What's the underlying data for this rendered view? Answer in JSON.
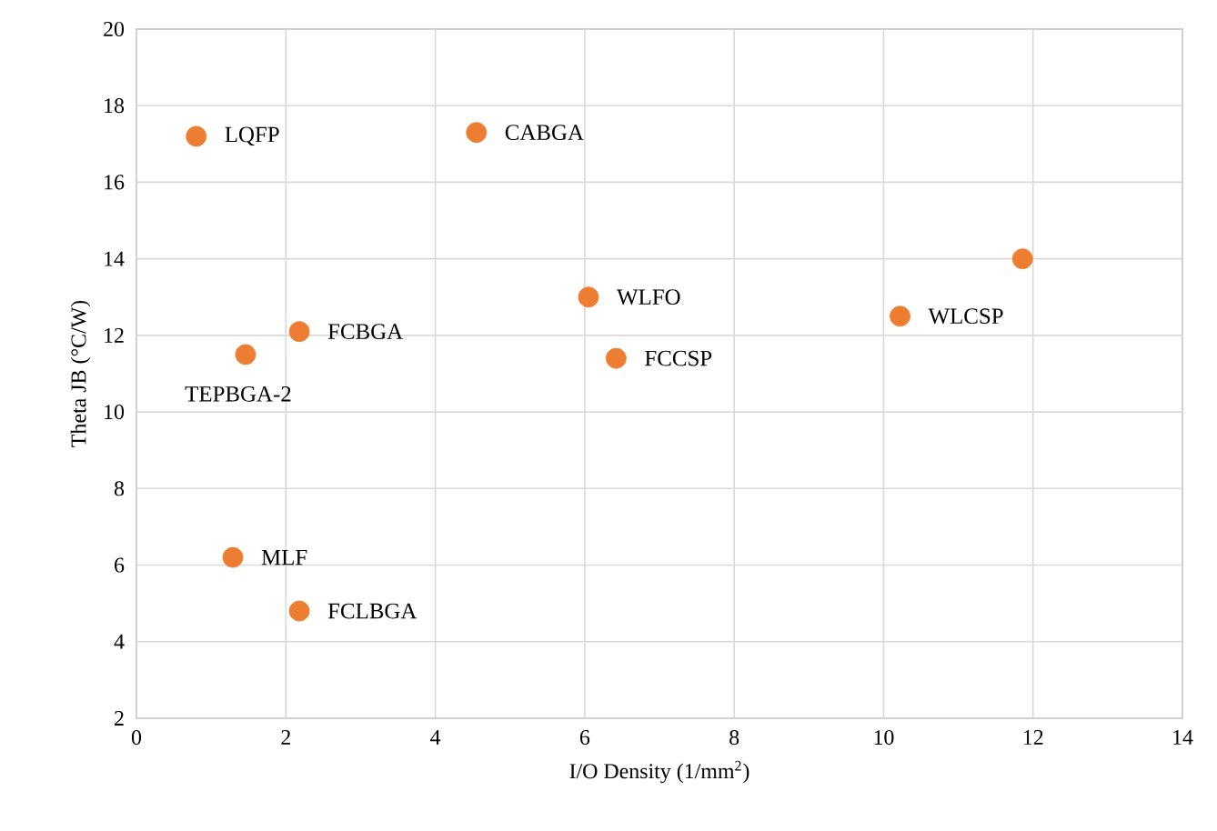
{
  "chart_data": {
    "type": "scatter",
    "xlabel": "I/O Density (1/mm$^{2}$)",
    "ylabel": "Theta JB (°C/W)",
    "series": [
      {
        "color": "#ed7d31",
        "x": [
          0.8,
          4.55,
          11.86,
          6.05,
          10.22,
          2.18,
          6.42,
          1.46,
          1.29,
          2.18
        ],
        "values": [
          17.2,
          17.3,
          14.0,
          13.0,
          12.5,
          12.1,
          11.4,
          11.5,
          6.2,
          4.8
        ]
      }
    ],
    "annotations": [
      {
        "text": "LQFP",
        "x": 0.8,
        "y": 17.2
      },
      {
        "text": "CABGA",
        "x": 4.55,
        "y": 17.3
      },
      {
        "text": "WLFO",
        "x": 6.05,
        "y": 13.0
      },
      {
        "text": "WLCSP",
        "x": 10.22,
        "y": 12.5
      },
      {
        "text": "FCBGA",
        "x": 2.18,
        "y": 12.1
      },
      {
        "text": "FCCSP",
        "x": 6.42,
        "y": 11.4
      },
      {
        "text": "TEPBGA-2",
        "x": 1.46,
        "y": 11.5
      },
      {
        "text": "MLF",
        "x": 1.29,
        "y": 6.2
      },
      {
        "text": "FCLBGA",
        "x": 2.18,
        "y": 4.8
      }
    ],
    "xlim": [
      0,
      14
    ],
    "xticks": [
      0,
      2,
      4,
      6,
      8,
      10,
      12,
      14
    ],
    "ylim": [
      2,
      20
    ],
    "yticks": [
      2,
      4,
      6,
      8,
      10,
      12,
      14,
      16,
      18,
      20
    ],
    "grid": true
  }
}
